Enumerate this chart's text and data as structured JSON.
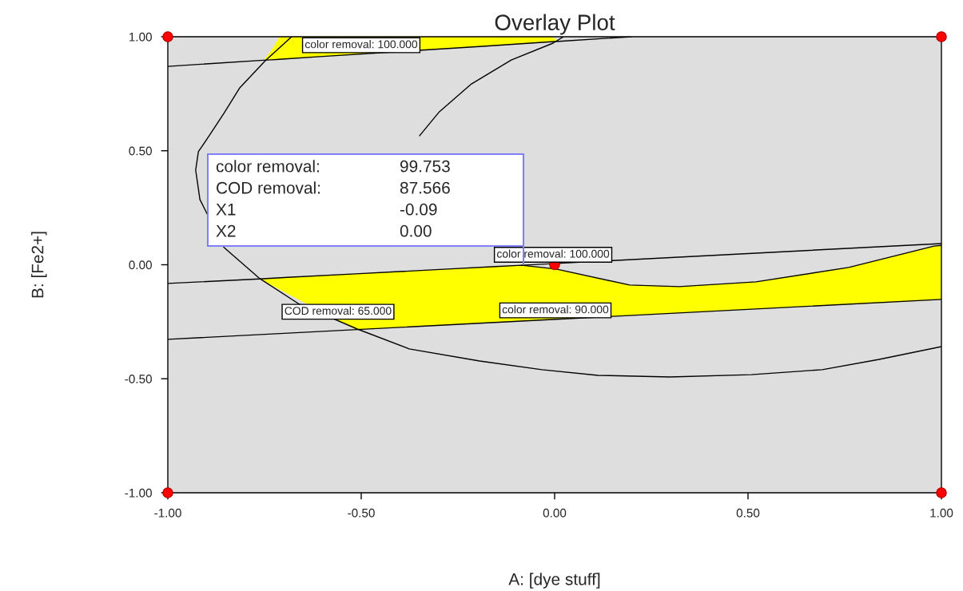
{
  "chart_data": {
    "type": "line",
    "title": "Overlay Plot",
    "xlabel": "A: [dye stuff]",
    "ylabel": "B: [Fe2+]",
    "xlim": [
      -1,
      1
    ],
    "ylim": [
      -1,
      1
    ],
    "xticks": [
      {
        "value": -1,
        "label": "-1.00"
      },
      {
        "value": -0.5,
        "label": "-0.50"
      },
      {
        "value": 0,
        "label": "0.00"
      },
      {
        "value": 0.5,
        "label": "0.50"
      },
      {
        "value": 1,
        "label": "1.00"
      }
    ],
    "yticks": [
      {
        "value": -1,
        "label": "-1.00"
      },
      {
        "value": -0.5,
        "label": "-0.50"
      },
      {
        "value": 0,
        "label": "0.00"
      },
      {
        "value": 0.5,
        "label": "0.50"
      },
      {
        "value": 1,
        "label": "1.00"
      }
    ],
    "series": [
      {
        "color": "#000000",
        "colors": [
          "#ffff00",
          "#ffff00",
          "#ffff00",
          "#ffff00",
          "#ffff00",
          "#ffff00",
          "#ffff00",
          "#ffff00",
          "#ffff00"
        ],
        "x": [
          -1,
          -0.752,
          -0.731,
          -0.711,
          -0.607,
          -0.194,
          -0.008,
          0.012,
          0.198
        ],
        "values": [
          0.87,
          0.897,
          0.899,
          0.901,
          0.913,
          0.957,
          0.978,
          0.98,
          1.0
        ],
        "lower": [
          null,
          0.897,
          0.899,
          0.901,
          0.913,
          0.957,
          0.978,
          0.98,
          null
        ],
        "upper": [
          null,
          0.897,
          0.944,
          1.0,
          1.0,
          1.0,
          1.0,
          0.98,
          null
        ]
      },
      {
        "color": "#000000",
        "colors": [
          "#ffff00",
          "#ffff00",
          "#ffff00",
          "#ffff00",
          "#ffff00",
          "#ffff00",
          "#ffff00",
          "#ffff00",
          "#ffff00",
          "#ffff00",
          "#ffff00",
          "#ffff00",
          "#ffff00",
          "#ffff00"
        ],
        "x": [
          -0.762,
          -0.69,
          -0.514,
          -0.401,
          -0.277,
          -0.153,
          -0.085,
          0.004,
          0.194,
          0.322,
          0.521,
          0.76,
          0.981,
          1.0
        ],
        "values": [
          -0.062,
          -0.055,
          -0.04,
          -0.03,
          -0.019,
          -0.008,
          -0.002,
          -0.019,
          -0.089,
          -0.096,
          -0.075,
          -0.012,
          0.082,
          0.085
        ],
        "lower": [
          -0.062,
          -0.128,
          -0.285,
          -0.275,
          -0.264,
          -0.253,
          -0.247,
          -0.24,
          -0.222,
          -0.211,
          -0.194,
          -0.174,
          -0.155,
          -0.152
        ],
        "upper": [
          -0.062,
          -0.055,
          -0.04,
          -0.03,
          -0.019,
          -0.008,
          -0.002,
          -0.019,
          -0.089,
          -0.096,
          -0.075,
          -0.012,
          0.082,
          0.085
        ]
      },
      {
        "color": "#000000",
        "x": [
          -1,
          -0.762,
          -0.4,
          -0.085,
          1
        ],
        "values": [
          -0.082,
          -0.062,
          null,
          -0.002,
          0.093
        ]
      },
      {
        "color": "#000000",
        "x": [
          -1,
          1
        ],
        "values": [
          -0.327,
          -0.152
        ]
      },
      {
        "color": "#000000",
        "x": [
          -0.68,
          -0.748,
          -0.814,
          -0.855,
          -0.893,
          -0.921,
          -0.928,
          -0.917,
          -0.855,
          -0.762,
          -0.663,
          -0.51,
          -0.376,
          -0.194,
          -0.033,
          0.112,
          0.298,
          0.508,
          0.692,
          0.839,
          1.0
        ],
        "values": [
          1.0,
          0.895,
          0.776,
          0.664,
          0.566,
          0.496,
          0.415,
          0.286,
          0.076,
          -0.061,
          -0.17,
          -0.282,
          -0.369,
          -0.422,
          -0.46,
          -0.485,
          -0.492,
          -0.482,
          -0.46,
          -0.415,
          -0.359
        ]
      },
      {
        "color": "#000000",
        "x": [
          0.023,
          -0.004,
          -0.112,
          -0.215,
          -0.298,
          -0.349
        ],
        "values": [
          1.0,
          0.972,
          0.898,
          0.793,
          0.671,
          0.566
        ]
      },
      {
        "type": "scatter",
        "color": "#ff0000",
        "marker": "circle",
        "x": [
          -1,
          1,
          -1,
          1,
          0
        ],
        "values": [
          1,
          1,
          -1,
          -1,
          0
        ]
      }
    ],
    "annotations": [
      {
        "text": "color removal: 100.000",
        "x": -0.5,
        "y": 0.924
      },
      {
        "text": "color removal: 100.000",
        "x": -0.004,
        "y": 0.005
      },
      {
        "text": "COD removal: 65.000",
        "x": -0.56,
        "y": -0.245
      },
      {
        "text": "color removal: 90.000",
        "x": 0.002,
        "y": -0.239
      },
      "color removal:",
      "99.753",
      "COD removal:",
      "87.566",
      "X1",
      "-0.09",
      "X2",
      "0.00"
    ]
  }
}
